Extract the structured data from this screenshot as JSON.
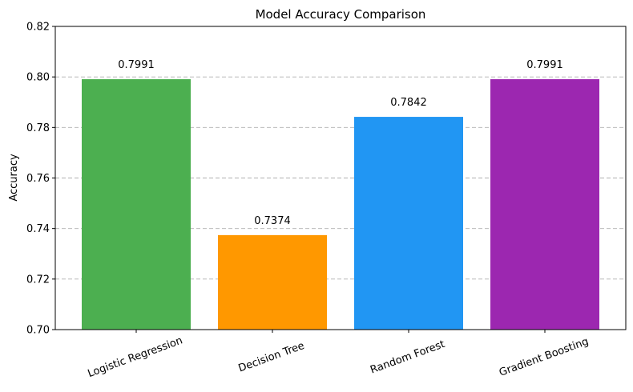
{
  "chart_data": {
    "type": "bar",
    "title": "Model Accuracy Comparison",
    "xlabel": "",
    "ylabel": "Accuracy",
    "ylim": [
      0.7,
      0.82
    ],
    "yticks": [
      "0.70",
      "0.72",
      "0.74",
      "0.76",
      "0.78",
      "0.80",
      "0.82"
    ],
    "grid": "y-dashed",
    "categories": [
      "Logistic Regression",
      "Decision Tree",
      "Random Forest",
      "Gradient Boosting"
    ],
    "values": [
      0.7991,
      0.7374,
      0.7842,
      0.7991
    ],
    "value_labels": [
      "0.7991",
      "0.7374",
      "0.7842",
      "0.7991"
    ],
    "colors": [
      "#4caf50",
      "#ff9800",
      "#2196f3",
      "#9c27b0"
    ]
  }
}
